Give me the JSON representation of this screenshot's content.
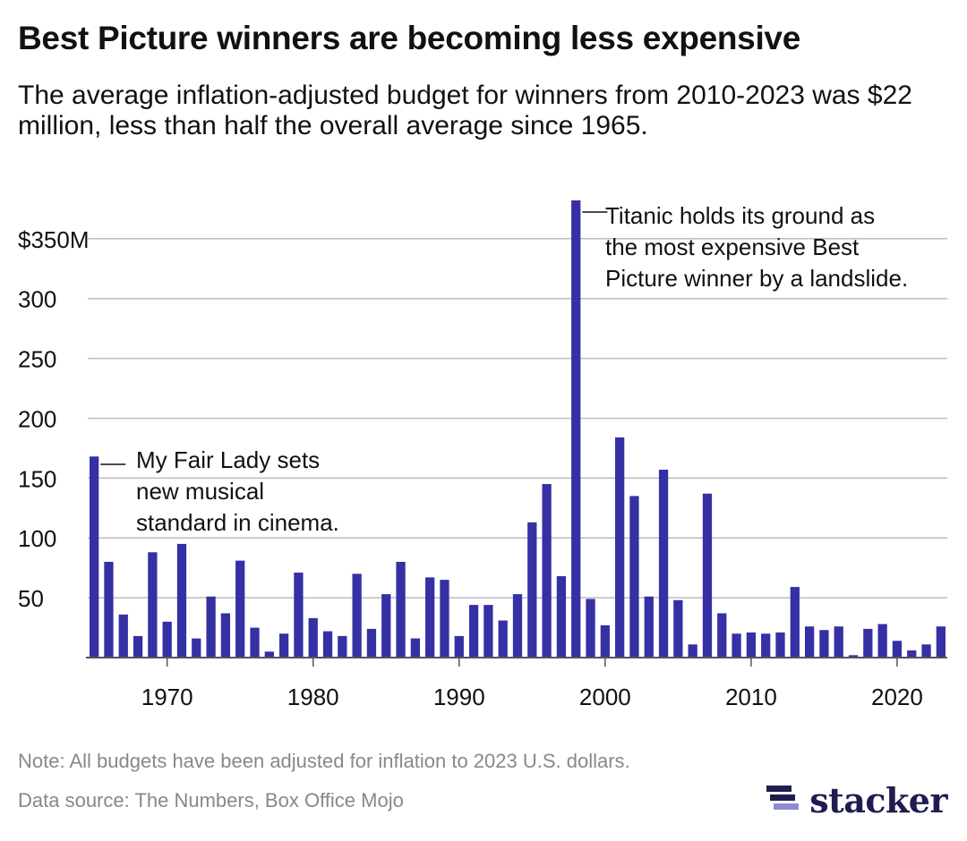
{
  "header": {
    "title": "Best Picture winners are becoming less expensive",
    "subtitle": "The average inflation-adjusted budget for winners from 2010-2023 was $22 million, less than half the overall average since 1965."
  },
  "footer": {
    "note": "Note: All budgets have been adjusted for inflation to 2023 U.S. dollars.",
    "source": "Data source: The Numbers, Box Office Mojo",
    "brand": "stacker"
  },
  "colors": {
    "bar": "#3530a3",
    "grid": "#bdbdbd",
    "axis": "#555555",
    "brand": "#1f1d4f",
    "brand_light": "#8f8bd6"
  },
  "chart_data": {
    "type": "bar",
    "x": [
      1965,
      1966,
      1967,
      1968,
      1969,
      1970,
      1971,
      1972,
      1973,
      1974,
      1975,
      1976,
      1977,
      1978,
      1979,
      1980,
      1981,
      1982,
      1983,
      1984,
      1985,
      1986,
      1987,
      1988,
      1989,
      1990,
      1991,
      1992,
      1993,
      1994,
      1995,
      1996,
      1997,
      1998,
      1999,
      2000,
      2001,
      2002,
      2003,
      2004,
      2005,
      2006,
      2007,
      2008,
      2009,
      2010,
      2011,
      2012,
      2013,
      2014,
      2015,
      2016,
      2017,
      2018,
      2019,
      2020,
      2021,
      2022,
      2023
    ],
    "values": [
      168,
      80,
      36,
      18,
      88,
      30,
      95,
      16,
      51,
      37,
      81,
      25,
      5,
      20,
      71,
      33,
      22,
      18,
      70,
      24,
      53,
      80,
      16,
      67,
      65,
      18,
      44,
      44,
      31,
      53,
      113,
      145,
      68,
      382,
      49,
      27,
      184,
      135,
      51,
      157,
      48,
      11,
      137,
      37,
      20,
      21,
      20,
      21,
      59,
      26,
      23,
      26,
      2,
      24,
      28,
      14,
      6,
      11,
      26
    ],
    "ylim": [
      0,
      382
    ],
    "yticks": [
      50,
      100,
      150,
      200,
      250,
      300,
      350
    ],
    "ytick_labels": [
      "50",
      "100",
      "150",
      "200",
      "250",
      "300",
      "$350M"
    ],
    "xticks": [
      1970,
      1980,
      1990,
      2000,
      2010,
      2020
    ],
    "xtick_labels": [
      "1970",
      "1980",
      "1990",
      "2000",
      "2010",
      "2020"
    ],
    "grid": true,
    "annotations": [
      {
        "year": 1965,
        "lines": [
          "My Fair Lady sets",
          "new musical",
          "standard in cinema."
        ]
      },
      {
        "year": 1998,
        "lines": [
          "Titanic holds its ground as",
          "the most expensive Best",
          "Picture winner by a landslide."
        ]
      }
    ]
  }
}
